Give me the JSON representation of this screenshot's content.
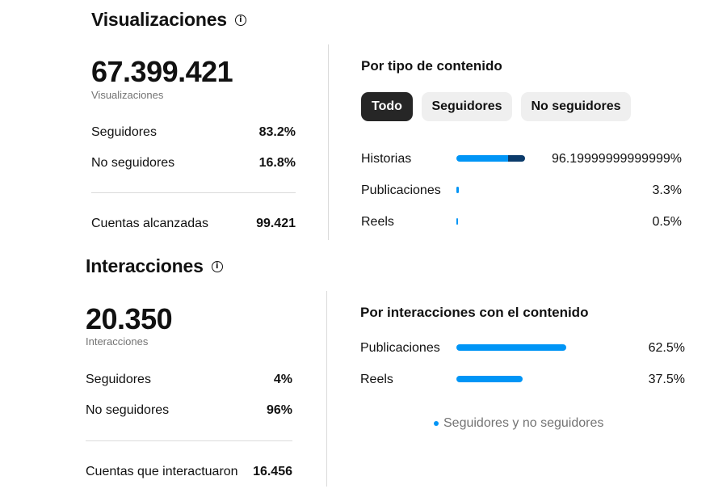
{
  "colors": {
    "followers": "#0095f6",
    "non_followers": "#0b3b6b",
    "text": "#111111",
    "muted": "#737373",
    "pill_active_bg": "#262626",
    "pill_inactive_bg": "#efefef"
  },
  "views": {
    "title": "Visualizaciones",
    "info_icon": "info-icon",
    "total": "67.399.421",
    "total_label": "Visualizaciones",
    "rows": [
      {
        "label": "Seguidores",
        "value": "83.2%"
      },
      {
        "label": "No seguidores",
        "value": "16.8%"
      }
    ],
    "accounts_label": "Cuentas alcanzadas",
    "accounts_value": "99.421",
    "content_type": {
      "title": "Por tipo de contenido",
      "filters": [
        {
          "label": "Todo",
          "active": true
        },
        {
          "label": "Seguidores",
          "active": false
        },
        {
          "label": "No seguidores",
          "active": false
        }
      ],
      "items": [
        {
          "label": "Historias",
          "percent_text": "96.19999999999999%",
          "bar_fraction": 0.85,
          "followers_share": 0.75
        },
        {
          "label": "Publicaciones",
          "percent_text": "3.3%",
          "bar_fraction": 0.03,
          "followers_share": 1.0
        },
        {
          "label": "Reels",
          "percent_text": "0.5%",
          "bar_fraction": 0.01,
          "followers_share": 1.0
        }
      ]
    }
  },
  "interactions": {
    "title": "Interacciones",
    "info_icon": "info-icon",
    "total": "20.350",
    "total_label": "Interacciones",
    "rows": [
      {
        "label": "Seguidores",
        "value": "4%"
      },
      {
        "label": "No seguidores",
        "value": "96%"
      }
    ],
    "accounts_label": "Cuentas que interactuaron",
    "accounts_value": "16.456",
    "content_interactions": {
      "title": "Por interacciones con el contenido",
      "items": [
        {
          "label": "Publicaciones",
          "percent_text": "62.5%",
          "bar_fraction": 0.625
        },
        {
          "label": "Reels",
          "percent_text": "37.5%",
          "bar_fraction": 0.375
        }
      ],
      "legend": "Seguidores y no seguidores"
    }
  }
}
